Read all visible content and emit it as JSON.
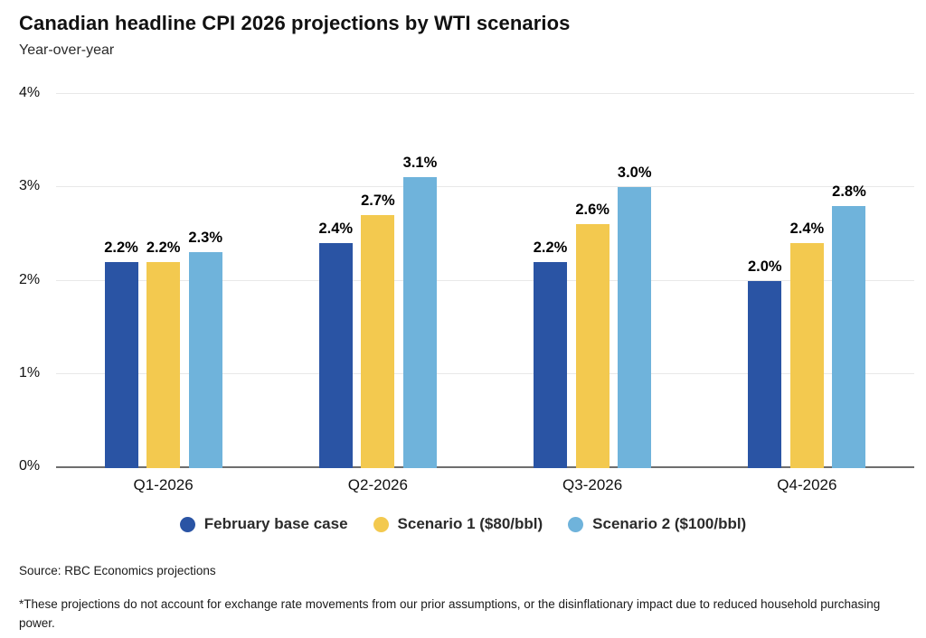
{
  "page": {
    "title": "Canadian headline CPI 2026 projections by WTI scenarios",
    "subtitle": "Year-over-year",
    "source": "Source: RBC Economics projections",
    "footnote": "*These projections do not account for exchange rate movements from our prior assumptions, or the disinflationary impact due to reduced household purchasing power."
  },
  "chart_data": {
    "type": "bar",
    "title": "Canadian headline CPI 2026 projections by WTI scenarios",
    "subtitle": "Year-over-year",
    "xlabel": "",
    "ylabel": "",
    "ylim": [
      0,
      4
    ],
    "grid": true,
    "legend_position": "bottom",
    "categories": [
      "Q1-2026",
      "Q2-2026",
      "Q3-2026",
      "Q4-2026"
    ],
    "series": [
      {
        "name": "February base case",
        "color": "#2A54A4",
        "values": [
          2.2,
          2.4,
          2.2,
          2.0
        ],
        "labels": [
          "2.2%",
          "2.4%",
          "2.2%",
          "2.0%"
        ]
      },
      {
        "name": "Scenario 1 ($80/bbl)",
        "color": "#F3C94F",
        "values": [
          2.2,
          2.7,
          2.6,
          2.4
        ],
        "labels": [
          "2.2%",
          "2.7%",
          "2.6%",
          "2.4%"
        ]
      },
      {
        "name": "Scenario 2 ($100/bbl)",
        "color": "#6FB3DB",
        "values": [
          2.3,
          3.1,
          3.0,
          2.8
        ],
        "labels": [
          "2.3%",
          "3.1%",
          "3.0%",
          "2.8%"
        ]
      }
    ],
    "yticks": [
      {
        "value": 0,
        "label": "0%"
      },
      {
        "value": 1,
        "label": "1%"
      },
      {
        "value": 2,
        "label": "2%"
      },
      {
        "value": 3,
        "label": "3%"
      },
      {
        "value": 4,
        "label": "4%"
      }
    ],
    "axis_color": "#6e6e6e",
    "grid_color": "#e8e8e8"
  }
}
